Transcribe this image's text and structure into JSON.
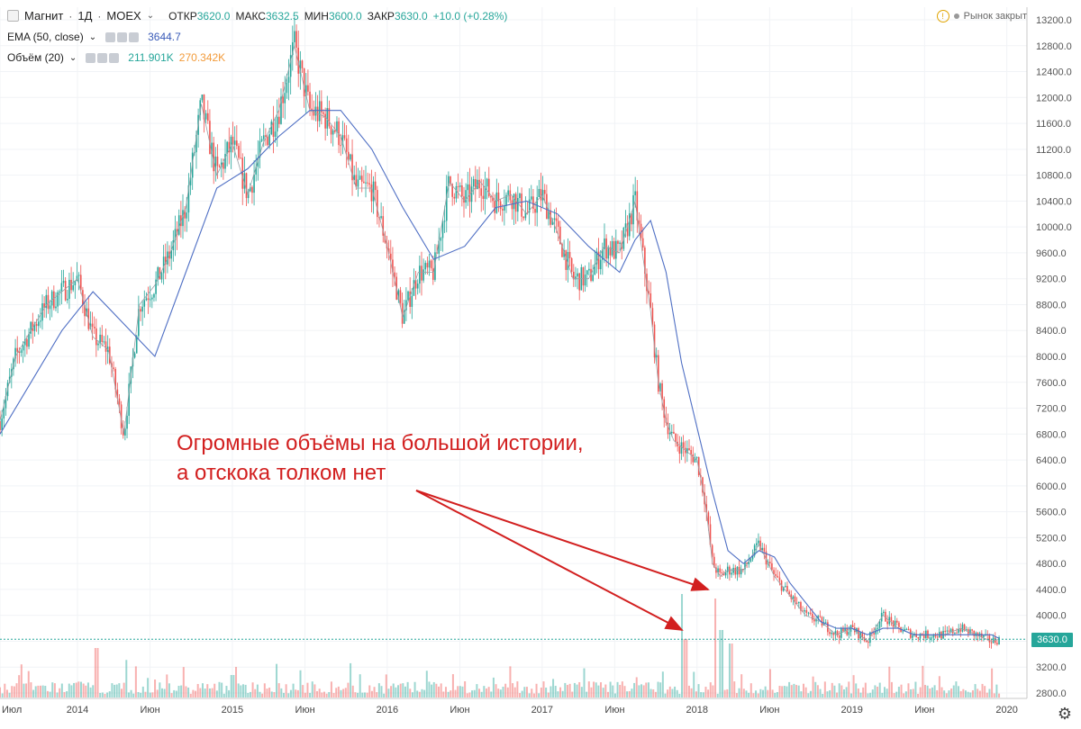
{
  "header": {
    "symbol": "Магнит",
    "interval": "1Д",
    "exchange": "MOEX",
    "open_label": "ОТКР",
    "open": "3620.0",
    "high_label": "МАКС",
    "high": "3632.5",
    "low_label": "МИН",
    "low": "3600.0",
    "close_label": "ЗАКР",
    "close": "3630.0",
    "change": "+10.0 (+0.28%)"
  },
  "indicators": [
    {
      "label": "EMA (50, close)",
      "value": "3644.7"
    },
    {
      "label": "Объём (20)",
      "value": "211.901K",
      "value2": "270.342K"
    }
  ],
  "market_status": "Рынок закрыт",
  "annotation": {
    "line1": "Огромные объёмы на большой истории,",
    "line2": "а отскока толком нет"
  },
  "last_price_label": "3630.0",
  "colors": {
    "up": "#26a69a",
    "down": "#ef5350",
    "ema": "#4f6fc4",
    "annotation": "#d21f1f"
  },
  "chart_data": {
    "type": "line",
    "title": "",
    "xlabel": "",
    "ylabel": "",
    "ylim": [
      2800,
      13200
    ],
    "y_ticks": [
      "13200.0",
      "12800.0",
      "12400.0",
      "12000.0",
      "11600.0",
      "11200.0",
      "10800.0",
      "10400.0",
      "10000.0",
      "9600.0",
      "9200.0",
      "8800.0",
      "8400.0",
      "8000.0",
      "7600.0",
      "7200.0",
      "6800.0",
      "6400.0",
      "6000.0",
      "5600.0",
      "5200.0",
      "4800.0",
      "4400.0",
      "4000.0",
      "3600.0",
      "3200.0",
      "2800.0"
    ],
    "x_ticks": [
      "Июл",
      "2014",
      "Июн",
      "2015",
      "Июн",
      "2016",
      "Июн",
      "2017",
      "Июн",
      "2018",
      "Июн",
      "2019",
      "Июн",
      "2020"
    ],
    "x_tick_pos": [
      0.0,
      0.5,
      0.969,
      1.5,
      1.969,
      2.5,
      2.969,
      3.5,
      3.969,
      4.5,
      4.969,
      5.5,
      5.969,
      6.5
    ],
    "xlim": [
      0.0,
      6.63
    ],
    "series": [
      {
        "x": [
          0.0,
          0.1,
          0.2,
          0.3,
          0.4,
          0.5,
          0.6,
          0.7,
          0.8,
          0.9,
          1.0,
          1.1,
          1.2,
          1.3,
          1.4,
          1.5,
          1.6,
          1.7,
          1.8,
          1.9,
          2.0,
          2.1,
          2.2,
          2.3,
          2.4,
          2.5,
          2.6,
          2.7,
          2.8,
          2.9,
          3.0,
          3.1,
          3.2,
          3.3,
          3.4,
          3.5,
          3.6,
          3.7,
          3.8,
          3.9,
          4.0,
          4.1,
          4.2,
          4.25,
          4.3,
          4.35,
          4.4,
          4.5,
          4.55,
          4.6,
          4.65,
          4.7,
          4.8,
          4.9,
          5.0,
          5.1,
          5.2,
          5.3,
          5.4,
          5.5,
          5.6,
          5.7,
          5.8,
          5.9,
          6.0,
          6.1,
          6.2,
          6.3,
          6.4,
          6.45
        ],
        "values": [
          7000,
          8000,
          8400,
          8800,
          9000,
          9200,
          8300,
          8100,
          6800,
          8800,
          9100,
          9600,
          10300,
          11900,
          10800,
          11300,
          10500,
          11300,
          11800,
          12800,
          11800,
          11700,
          11400,
          10600,
          10600,
          9700,
          8600,
          9300,
          9300,
          10700,
          10400,
          10700,
          10400,
          10500,
          10200,
          10500,
          9900,
          9200,
          9200,
          9700,
          9600,
          10400,
          8700,
          7600,
          7000,
          6700,
          6600,
          6400,
          5800,
          4800,
          4600,
          4700,
          4700,
          5100,
          4600,
          4300,
          4000,
          3900,
          3700,
          3800,
          3600,
          4000,
          3800,
          3700,
          3700,
          3700,
          3800,
          3700,
          3600,
          3630
        ]
      },
      {
        "name": "EMA (50, close)",
        "x": [
          0.0,
          0.2,
          0.4,
          0.6,
          0.8,
          1.0,
          1.2,
          1.4,
          1.6,
          1.8,
          2.0,
          2.2,
          2.4,
          2.6,
          2.8,
          3.0,
          3.2,
          3.4,
          3.6,
          3.8,
          4.0,
          4.1,
          4.2,
          4.3,
          4.4,
          4.5,
          4.6,
          4.7,
          4.8,
          4.9,
          5.0,
          5.1,
          5.2,
          5.3,
          5.4,
          5.5,
          5.6,
          5.7,
          5.8,
          5.9,
          6.0,
          6.2,
          6.4,
          6.45
        ],
        "values": [
          6800,
          7600,
          8400,
          9000,
          8500,
          8000,
          9300,
          10600,
          10900,
          11400,
          11800,
          11800,
          11200,
          10300,
          9500,
          9700,
          10300,
          10400,
          10200,
          9700,
          9300,
          9800,
          10100,
          9300,
          7900,
          6900,
          5900,
          5000,
          4800,
          5000,
          4900,
          4500,
          4200,
          3900,
          3800,
          3800,
          3700,
          3800,
          3800,
          3700,
          3700,
          3700,
          3700,
          3645
        ]
      }
    ],
    "volume_series": [
      {
        "name": "Объём (20)",
        "value": "211.901K"
      }
    ]
  }
}
